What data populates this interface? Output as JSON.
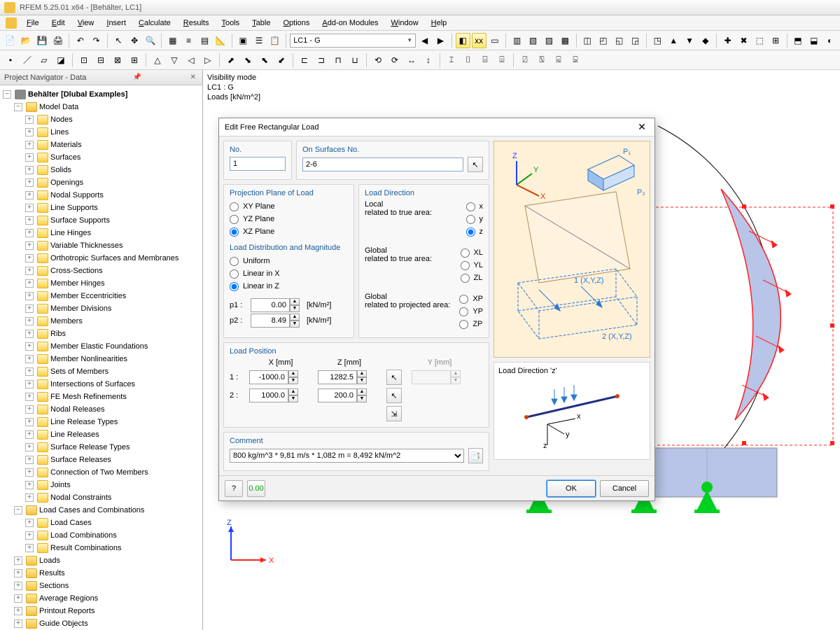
{
  "app": {
    "title": "RFEM 5.25.01 x64 - [Behälter, LC1]"
  },
  "menu": [
    "File",
    "Edit",
    "View",
    "Insert",
    "Calculate",
    "Results",
    "Tools",
    "Table",
    "Options",
    "Add-on Modules",
    "Window",
    "Help"
  ],
  "toolbar_combo": "LC1 - G",
  "navigator": {
    "title": "Project Navigator - Data",
    "root": "Behälter [Dlubal Examples]",
    "model_data": "Model Data",
    "model_children": [
      "Nodes",
      "Lines",
      "Materials",
      "Surfaces",
      "Solids",
      "Openings",
      "Nodal Supports",
      "Line Supports",
      "Surface Supports",
      "Line Hinges",
      "Variable Thicknesses",
      "Orthotropic Surfaces and Membranes",
      "Cross-Sections",
      "Member Hinges",
      "Member Eccentricities",
      "Member Divisions",
      "Members",
      "Ribs",
      "Member Elastic Foundations",
      "Member Nonlinearities",
      "Sets of Members",
      "Intersections of Surfaces",
      "FE Mesh Refinements",
      "Nodal Releases",
      "Line Release Types",
      "Line Releases",
      "Surface Release Types",
      "Surface Releases",
      "Connection of Two Members",
      "Joints",
      "Nodal Constraints"
    ],
    "lc_group": "Load Cases and Combinations",
    "lc_children": [
      "Load Cases",
      "Load Combinations",
      "Result Combinations"
    ],
    "tail": [
      "Loads",
      "Results",
      "Sections",
      "Average Regions",
      "Printout Reports",
      "Guide Objects"
    ]
  },
  "viewport": {
    "info1": "Visibility mode",
    "info2": "LC1 : G",
    "info3": "Loads [kN/m^2]",
    "axis_x": "X",
    "axis_z": "Z"
  },
  "dialog": {
    "title": "Edit Free Rectangular Load",
    "no_label": "No.",
    "no_value": "1",
    "onsurf_label": "On Surfaces No.",
    "onsurf_value": "2-6",
    "proj_title": "Projection Plane of Load",
    "proj_opts": [
      "XY Plane",
      "YZ Plane",
      "XZ Plane"
    ],
    "proj_sel": 2,
    "dir_title": "Load Direction",
    "dir_local_label": "Local\nrelated to true area:",
    "dir_local_opts": [
      "x",
      "y",
      "z"
    ],
    "dir_local_sel": 2,
    "dir_global1_label": "Global\nrelated to true area:",
    "dir_global1_opts": [
      "XL",
      "YL",
      "ZL"
    ],
    "dir_global2_label": "Global\nrelated to projected area:",
    "dir_global2_opts": [
      "XP",
      "YP",
      "ZP"
    ],
    "dist_title": "Load Distribution and Magnitude",
    "dist_opts": [
      "Uniform",
      "Linear in X",
      "Linear in Z"
    ],
    "dist_sel": 2,
    "p1_label": "p1 :",
    "p1_value": "0.00",
    "p_unit": "[kN/m²]",
    "p2_label": "p2 :",
    "p2_value": "8.49",
    "pos_title": "Load Position",
    "pos_cols": [
      "X  [mm]",
      "Z  [mm]",
      "Y  [mm]"
    ],
    "pos_rows": [
      {
        "n": "1 :",
        "x": "-1000.0",
        "z": "1282.5"
      },
      {
        "n": "2 :",
        "x": "1000.0",
        "z": "200.0"
      }
    ],
    "comment_title": "Comment",
    "comment_value": "800 kg/m^3 * 9,81 m/s * 1,082 m = 8,492 kN/m^2",
    "preview2_title": "Load Direction 'z'",
    "ok": "OK",
    "cancel": "Cancel"
  },
  "colors": {
    "accent": "#2a7ad0",
    "support": "#00d020",
    "load": "#ff2020",
    "surf": "#b8c4e8"
  }
}
